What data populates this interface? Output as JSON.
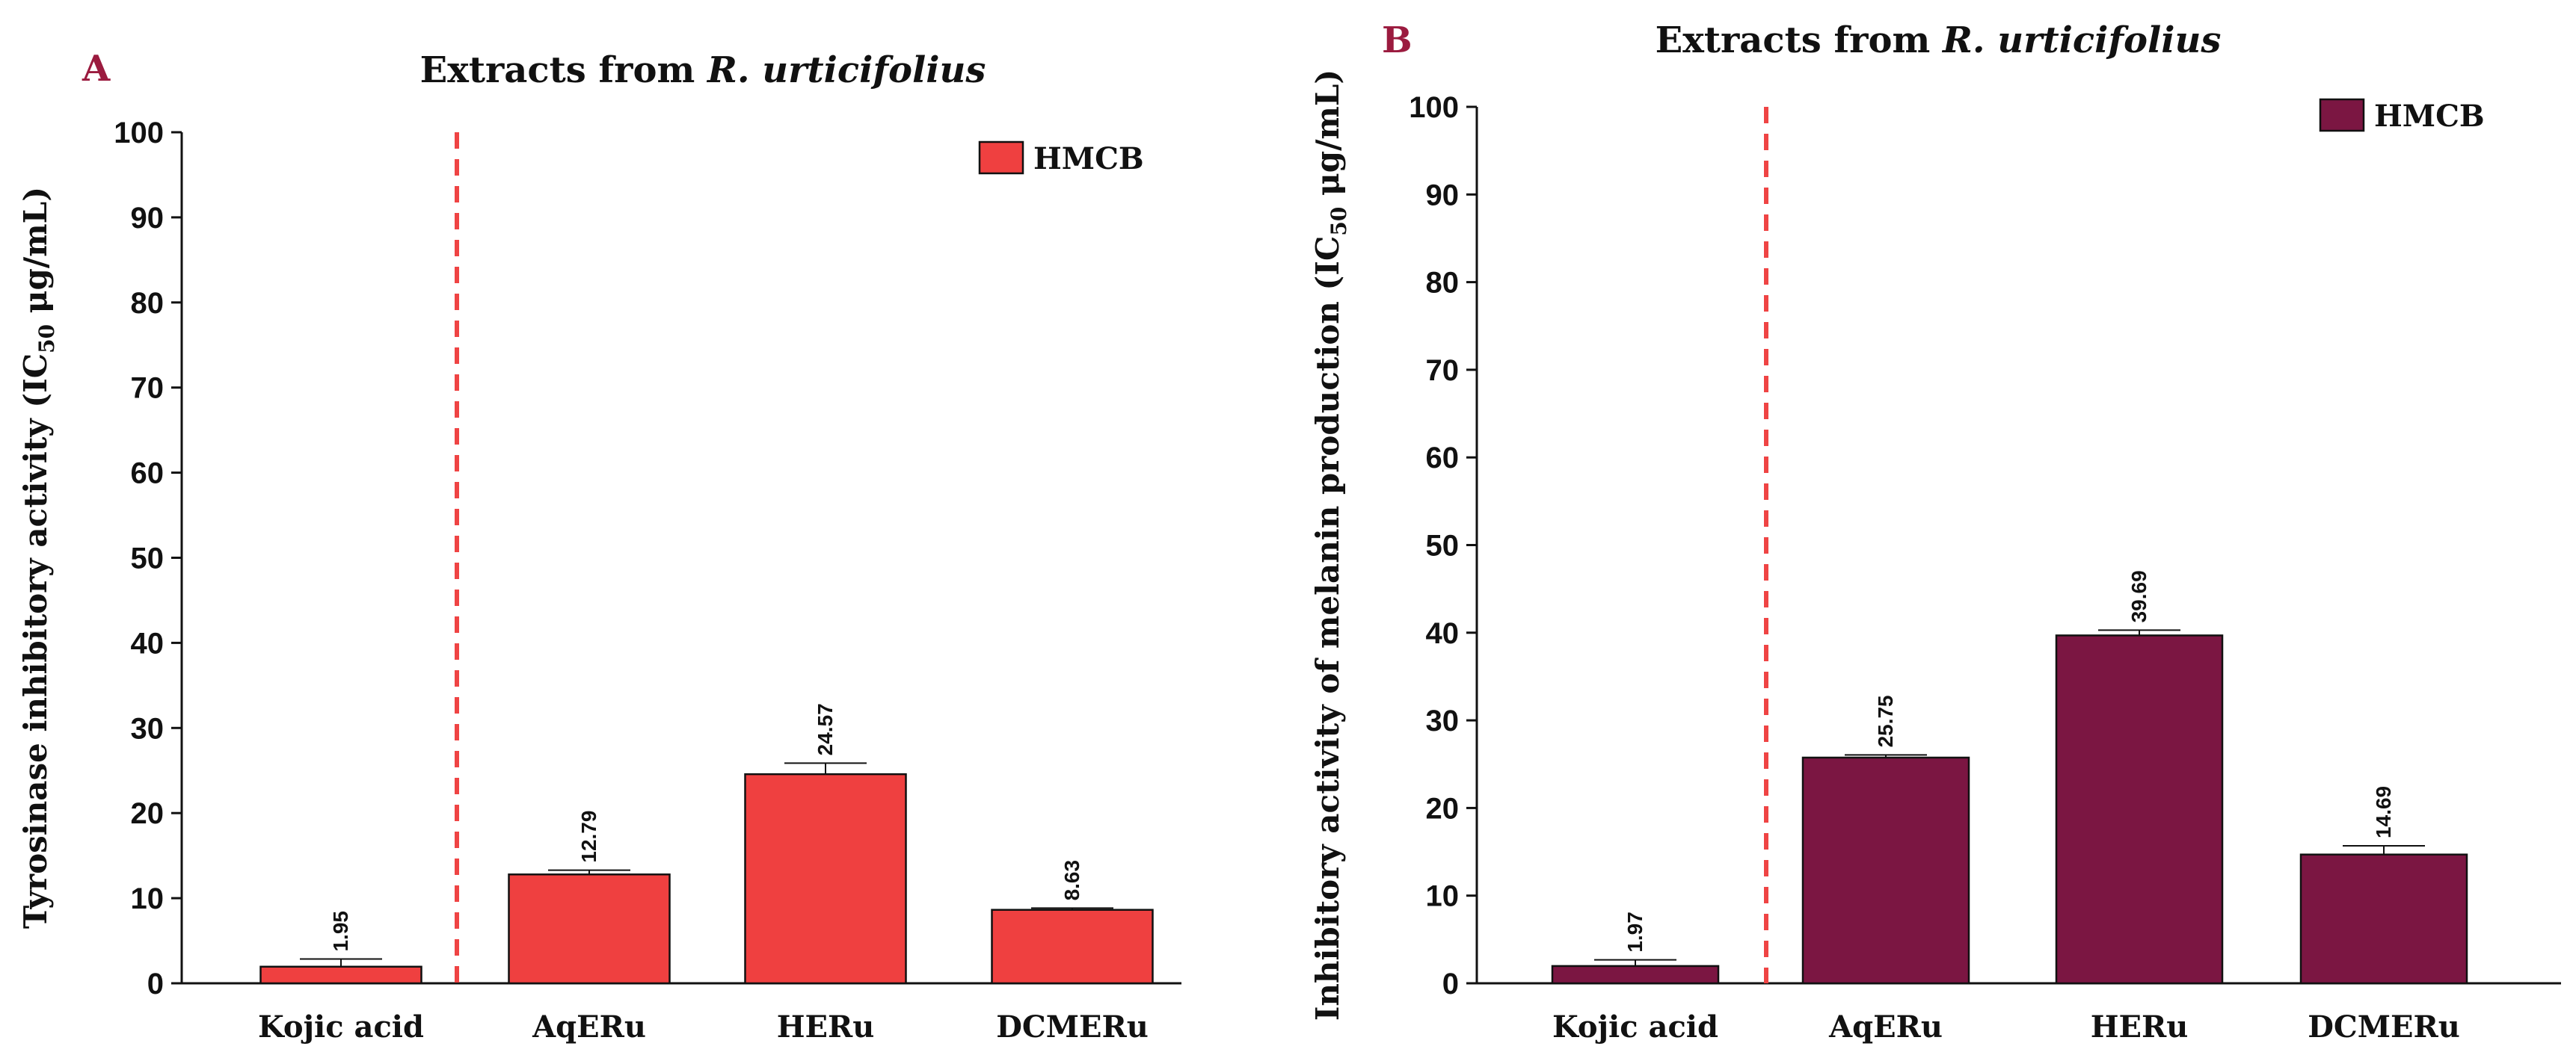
{
  "chart_data": [
    {
      "panel": "A",
      "type": "bar",
      "title_prefix": "Extracts from",
      "title_italic": "R. urticifolius",
      "ylabel_prefix": "Tyrosinase inhibitory activity (IC",
      "ylabel_sub": "50",
      "ylabel_suffix": " μg/mL)",
      "xlabel": "",
      "ylim": [
        0,
        100
      ],
      "yticks": [
        0,
        10,
        20,
        30,
        40,
        50,
        60,
        70,
        80,
        90,
        100
      ],
      "categories": [
        "Kojic acid",
        "AqERu",
        "HERu",
        "DCMERu"
      ],
      "values": [
        1.95,
        12.79,
        24.57,
        8.63
      ],
      "errors": [
        0.9,
        0.5,
        1.3,
        0.2
      ],
      "value_labels": [
        "1.95",
        "12.79",
        "24.57",
        "8.63"
      ],
      "legend": "HMCB",
      "color": "#ef4040",
      "divider_color": "#ef4444",
      "letter_color": "#9b1b3f"
    },
    {
      "panel": "B",
      "type": "bar",
      "title_prefix": "Extracts from",
      "title_italic": "R. urticifolius",
      "ylabel_prefix": "Inhibitory activity of melanin production (IC",
      "ylabel_sub": "50",
      "ylabel_suffix": " μg/mL)",
      "xlabel": "",
      "ylim": [
        0,
        100
      ],
      "yticks": [
        0,
        10,
        20,
        30,
        40,
        50,
        60,
        70,
        80,
        90,
        100
      ],
      "categories": [
        "Kojic acid",
        "AqERu",
        "HERu",
        "DCMERu"
      ],
      "values": [
        1.97,
        25.75,
        39.69,
        14.69
      ],
      "errors": [
        0.7,
        0.3,
        0.6,
        1.0
      ],
      "value_labels": [
        "1.97",
        "25.75",
        "39.69",
        "14.69"
      ],
      "legend": "HMCB",
      "color": "#7b1642",
      "divider_color": "#ef4444",
      "letter_color": "#9b1b3f"
    }
  ]
}
